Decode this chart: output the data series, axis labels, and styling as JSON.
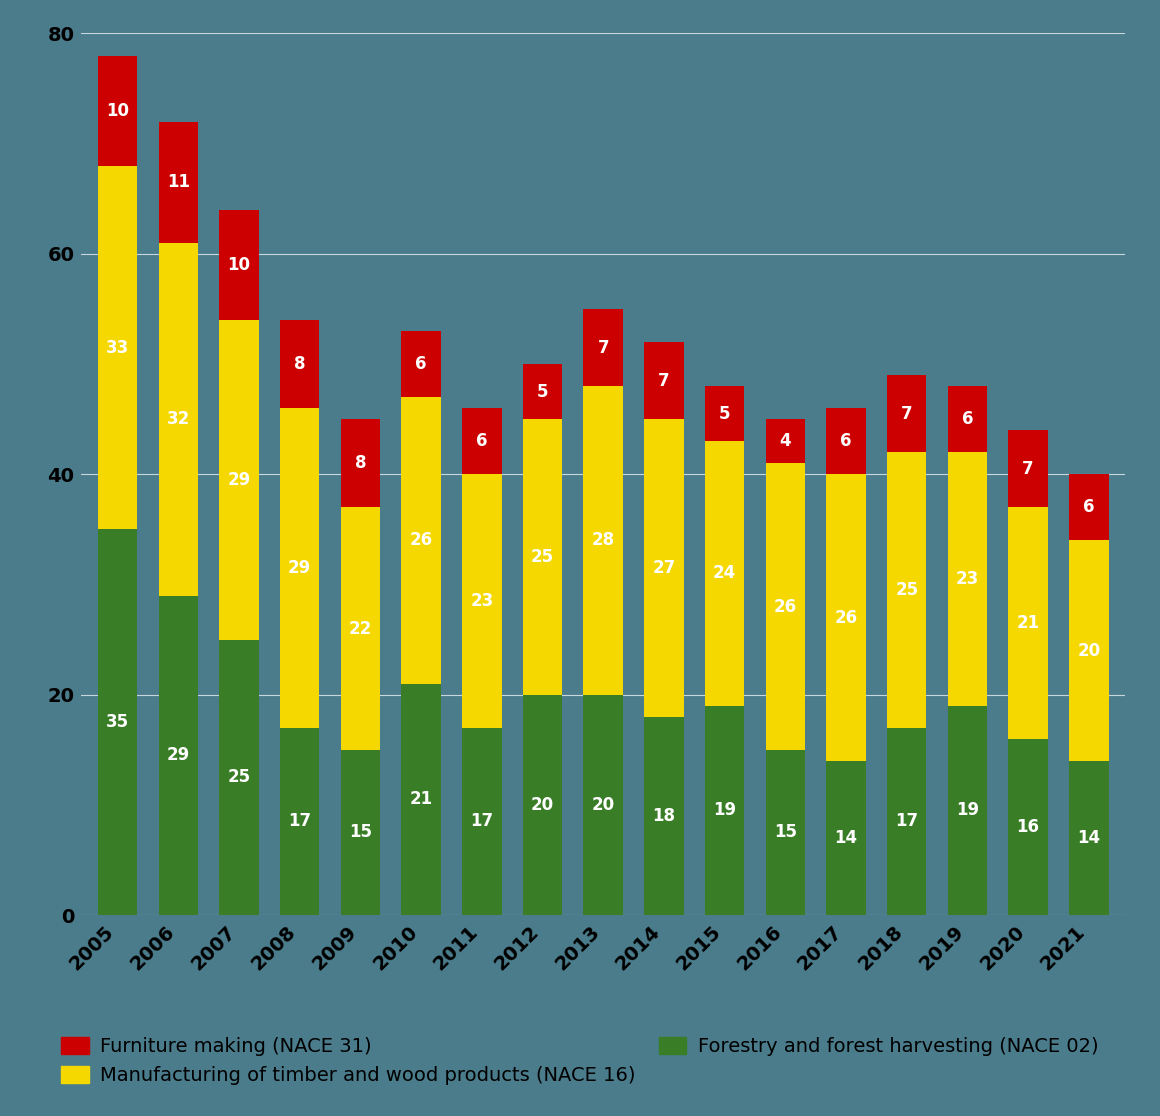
{
  "years": [
    "2005",
    "2006",
    "2007",
    "2008",
    "2009",
    "2010",
    "2011",
    "2012",
    "2013",
    "2014",
    "2015",
    "2016",
    "2017",
    "2018",
    "2019",
    "2020",
    "2021"
  ],
  "forestry": [
    35,
    29,
    25,
    17,
    15,
    21,
    17,
    20,
    20,
    18,
    19,
    15,
    14,
    17,
    19,
    16,
    14
  ],
  "timber": [
    33,
    32,
    29,
    29,
    22,
    26,
    23,
    25,
    28,
    27,
    24,
    26,
    26,
    25,
    23,
    21,
    20
  ],
  "furniture": [
    10,
    11,
    10,
    8,
    8,
    6,
    6,
    5,
    7,
    7,
    5,
    4,
    6,
    7,
    6,
    7,
    6
  ],
  "forestry_color": "#3a7d27",
  "timber_color": "#f5d800",
  "furniture_color": "#cc0000",
  "background_color": "#4a7c8c",
  "tick_color": "#000000",
  "ylim": [
    0,
    80
  ],
  "yticks": [
    0,
    20,
    40,
    60,
    80
  ],
  "legend_labels": [
    "Furniture making (NACE 31)",
    "Manufacturing of timber and wood products (NACE 16)",
    "Forestry and forest harvesting (NACE 02)"
  ],
  "label_fontsize": 14,
  "tick_fontsize": 14,
  "bar_label_fontsize": 12,
  "bar_width": 0.65,
  "figsize": [
    11.6,
    11.16
  ],
  "dpi": 100
}
